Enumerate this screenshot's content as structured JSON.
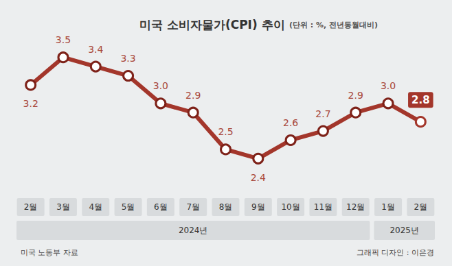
{
  "chart_data": {
    "type": "line",
    "title": "미국 소비자물가(CPI) 추이",
    "subtitle": "(단위 : %, 전년동월대비)",
    "categories": [
      "2월",
      "3월",
      "4월",
      "5월",
      "6월",
      "7월",
      "8월",
      "9월",
      "10월",
      "11월",
      "12월",
      "1월",
      "2월"
    ],
    "values": [
      3.2,
      3.5,
      3.4,
      3.3,
      3.0,
      2.9,
      2.5,
      2.4,
      2.6,
      2.7,
      2.9,
      3.0,
      2.8
    ],
    "value_labels": [
      "3.2",
      "3.5",
      "3.4",
      "3.3",
      "3.0",
      "2.9",
      "2.5",
      "2.4",
      "2.6",
      "2.7",
      "2.9",
      "3.0",
      "2.8"
    ],
    "color": "#a3362b",
    "marker": "circle",
    "data_labels": true,
    "tick_labels": "x",
    "grid": false,
    "ylim": [
      2.0,
      3.9
    ],
    "year_spans": [
      {
        "label": "2024년",
        "count": 11
      },
      {
        "label": "2025년",
        "count": 2
      }
    ],
    "source": "미국 노동부 자료",
    "credit": "그래픽 디자인 : 이은경"
  }
}
